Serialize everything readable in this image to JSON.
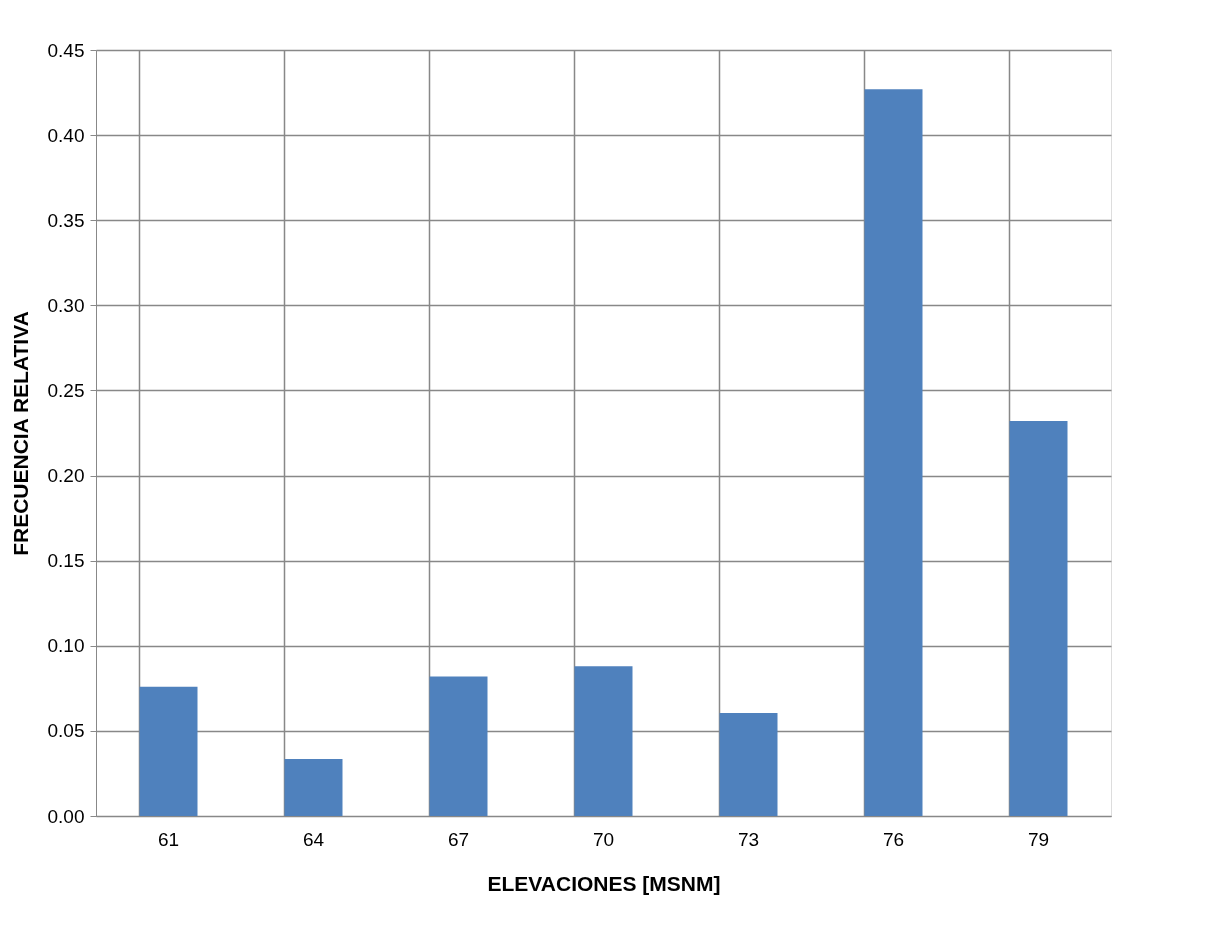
{
  "chart_data": {
    "type": "bar",
    "xlabel": "ELEVACIONES [MSNM]",
    "ylabel": "FRECUENCIA RELATIVA",
    "categories": [
      "61",
      "64",
      "67",
      "70",
      "73",
      "76",
      "79"
    ],
    "values": [
      0.076,
      0.0335,
      0.082,
      0.088,
      0.0605,
      0.427,
      0.232
    ],
    "color": "#4f81bd",
    "ylim": [
      0,
      0.45
    ],
    "yticks": [
      {
        "value": 0,
        "label": "0.00"
      },
      {
        "value": 0.05,
        "label": "0.05"
      },
      {
        "value": 0.1,
        "label": "0.10"
      },
      {
        "value": 0.15,
        "label": "0.15"
      },
      {
        "value": 0.2,
        "label": "0.20"
      },
      {
        "value": 0.25,
        "label": "0.25"
      },
      {
        "value": 0.3,
        "label": "0.30"
      },
      {
        "value": 0.35,
        "label": "0.35"
      },
      {
        "value": 0.4,
        "label": "0.40"
      },
      {
        "value": 0.45,
        "label": "0.45"
      }
    ],
    "grid": true
  }
}
